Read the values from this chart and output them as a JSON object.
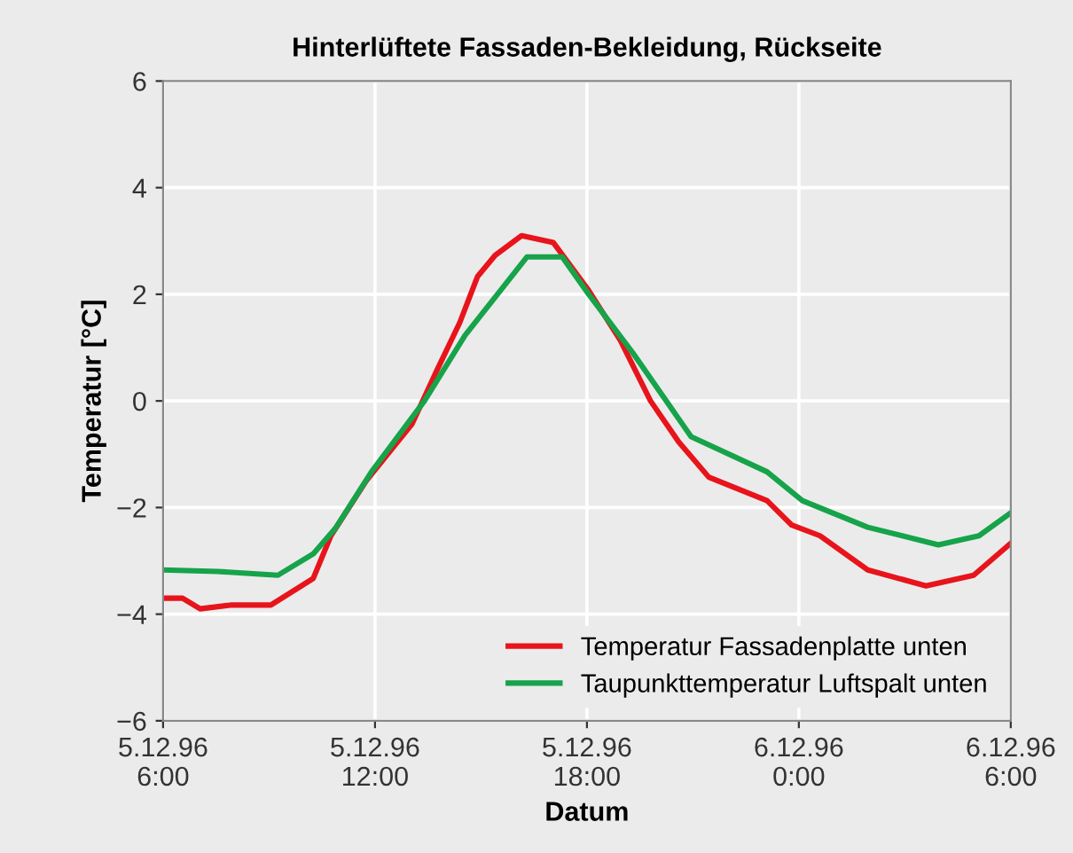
{
  "chart_data": {
    "type": "line",
    "title": "Hinterlüftete Fassaden-Bekleidung, Rückseite",
    "xlabel": "Datum",
    "ylabel": "Temperatur [°C]",
    "xlim": [
      "1996-12-05T06:00",
      "1996-12-06T06:00"
    ],
    "xticks": [
      {
        "value": "1996-12-05T06:00",
        "label": "5.12.96\n6:00"
      },
      {
        "value": "1996-12-05T12:00",
        "label": "5.12.96\n12:00"
      },
      {
        "value": "1996-12-05T18:00",
        "label": "5.12.96\n18:00"
      },
      {
        "value": "1996-12-06T00:00",
        "label": "6.12.96\n0:00"
      },
      {
        "value": "1996-12-06T06:00",
        "label": "6.12.96\n6:00"
      }
    ],
    "ylim": [
      -6,
      6
    ],
    "yticks": [
      -6,
      -4,
      -2,
      0,
      2,
      4,
      6
    ],
    "grid": true,
    "legend": "bottom right",
    "marker": "none",
    "line_style": "solid",
    "series": [
      {
        "name": "Temperatur Fassadenplatte unten",
        "color": "#e8141b",
        "x": [
          "1996-12-05T06:00",
          "1996-12-05T06:33",
          "1996-12-05T07:03",
          "1996-12-05T07:54",
          "1996-12-05T09:03",
          "1996-12-05T10:15",
          "1996-12-05T10:45",
          "1996-12-05T11:45",
          "1996-12-05T13:03",
          "1996-12-05T13:45",
          "1996-12-05T14:24",
          "1996-12-05T14:54",
          "1996-12-05T15:24",
          "1996-12-05T16:09",
          "1996-12-05T17:03",
          "1996-12-05T18:03",
          "1996-12-05T18:57",
          "1996-12-05T19:48",
          "1996-12-05T20:36",
          "1996-12-05T21:27",
          "1996-12-05T23:06",
          "1996-12-05T23:48",
          "1996-12-06T00:36",
          "1996-12-06T01:57",
          "1996-12-06T03:36",
          "1996-12-06T04:57",
          "1996-12-06T06:00"
        ],
        "values": [
          -3.7,
          -3.7,
          -3.9,
          -3.83,
          -3.83,
          -3.33,
          -2.53,
          -1.5,
          -0.43,
          0.57,
          1.47,
          2.33,
          2.73,
          3.1,
          2.97,
          2.07,
          1.13,
          0.0,
          -0.77,
          -1.43,
          -1.87,
          -2.33,
          -2.53,
          -3.17,
          -3.47,
          -3.27,
          -2.67
        ]
      },
      {
        "name": "Taupunkttemperatur Luftspalt unten",
        "color": "#16a34a",
        "x": [
          "1996-12-05T06:00",
          "1996-12-05T07:33",
          "1996-12-05T09:15",
          "1996-12-05T10:15",
          "1996-12-05T10:54",
          "1996-12-05T11:54",
          "1996-12-05T13:24",
          "1996-12-05T14:33",
          "1996-12-05T16:18",
          "1996-12-05T17:18",
          "1996-12-05T18:03",
          "1996-12-05T19:18",
          "1996-12-05T20:57",
          "1996-12-05T23:06",
          "1996-12-06T00:06",
          "1996-12-06T01:57",
          "1996-12-06T03:57",
          "1996-12-06T05:06",
          "1996-12-06T06:00"
        ],
        "values": [
          -3.17,
          -3.2,
          -3.27,
          -2.87,
          -2.37,
          -1.33,
          0.0,
          1.23,
          2.7,
          2.7,
          2.0,
          0.9,
          -0.67,
          -1.33,
          -1.87,
          -2.37,
          -2.7,
          -2.53,
          -2.1
        ]
      }
    ]
  }
}
